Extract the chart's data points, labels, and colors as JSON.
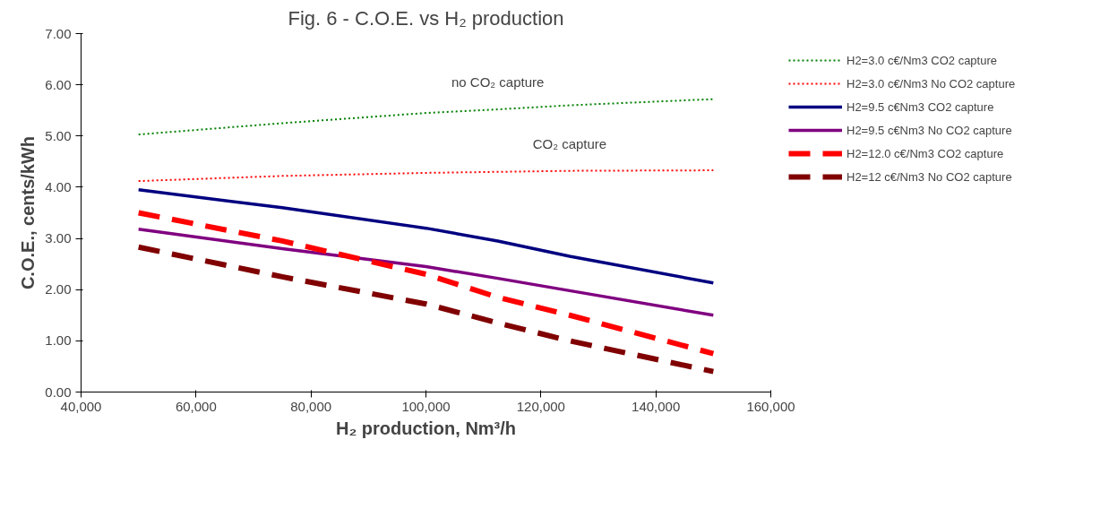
{
  "chart_data": {
    "type": "line",
    "title": "Fig. 6 - C.O.E. vs H₂ production",
    "xlabel": "H₂ production, Nm³/h",
    "ylabel": "C.O.E., cents/kWh",
    "xlim": [
      40000,
      160000
    ],
    "xticks": [
      {
        "value": 40000,
        "label": "40,000"
      },
      {
        "value": 60000,
        "label": "60,000"
      },
      {
        "value": 80000,
        "label": "80,000"
      },
      {
        "value": 100000,
        "label": "100,000"
      },
      {
        "value": 120000,
        "label": "120,000"
      },
      {
        "value": 140000,
        "label": "140,000"
      },
      {
        "value": 160000,
        "label": "160,000"
      }
    ],
    "ylim": [
      0,
      7
    ],
    "yticks": [
      {
        "value": 0,
        "label": "0.00"
      },
      {
        "value": 1,
        "label": "1.00"
      },
      {
        "value": 2,
        "label": "2.00"
      },
      {
        "value": 3,
        "label": "3.00"
      },
      {
        "value": 4,
        "label": "4.00"
      },
      {
        "value": 5,
        "label": "5.00"
      },
      {
        "value": 6,
        "label": "6.00"
      },
      {
        "value": 7,
        "label": "7.00"
      }
    ],
    "grid": false,
    "legend": "right",
    "marker": "none",
    "x": [
      50000,
      75000,
      100000,
      112500,
      125000,
      150000
    ],
    "series": [
      {
        "name": "H2=3.0 c€/Nm3 CO2 capture",
        "color": "#008000",
        "line_style": "dotted",
        "values": [
          5.03,
          5.25,
          5.45,
          5.52,
          5.6,
          5.72
        ]
      },
      {
        "name": "H2=3.0 c€/Nm3 No CO2 capture",
        "color": "#ff0000",
        "line_style": "dotted",
        "values": [
          4.12,
          4.22,
          4.28,
          4.3,
          4.32,
          4.33
        ]
      },
      {
        "name": "H2=9.5 c€Nm3 CO2 capture",
        "color": "#000080",
        "line_style": "solid",
        "values": [
          3.95,
          3.6,
          3.2,
          2.95,
          2.65,
          2.13
        ]
      },
      {
        "name": "H2=9.5 c€Nm3 No CO2 capture",
        "color": "#800080",
        "line_style": "solid",
        "values": [
          3.18,
          2.8,
          2.45,
          2.22,
          1.98,
          1.5
        ]
      },
      {
        "name": "H2=12.0 c€/Nm3 CO2 capture",
        "color": "#ff0000",
        "line_style": "dashed",
        "values": [
          3.5,
          2.95,
          2.3,
          1.85,
          1.5,
          0.75
        ]
      },
      {
        "name": "H2=12 c€/Nm3 No CO2 capture",
        "color": "#800000",
        "line_style": "dashed",
        "values": [
          2.83,
          2.25,
          1.72,
          1.35,
          1.0,
          0.4
        ]
      }
    ],
    "annotations": [
      "no CO₂ capture",
      "CO₂ capture"
    ]
  }
}
